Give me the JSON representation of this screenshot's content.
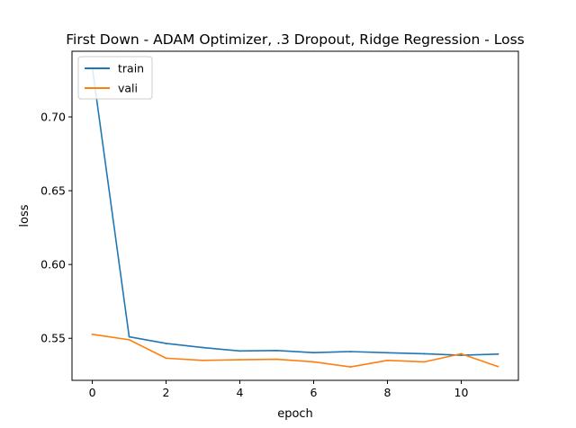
{
  "chart_data": {
    "type": "line",
    "title": "First Down - ADAM Optimizer, .3 Dropout, Ridge Regression - Loss",
    "xlabel": "epoch",
    "ylabel": "loss",
    "xlim": [
      -0.55,
      11.55
    ],
    "ylim": [
      0.5215,
      0.7445
    ],
    "xticks": [
      0,
      2,
      4,
      6,
      8,
      10
    ],
    "xtick_labels": [
      "0",
      "2",
      "4",
      "6",
      "8",
      "10"
    ],
    "yticks": [
      0.55,
      0.6,
      0.65,
      0.7
    ],
    "ytick_labels": [
      "0.55",
      "0.60",
      "0.65",
      "0.70"
    ],
    "grid": false,
    "legend_position": "upper-left",
    "x": [
      0,
      1,
      2,
      3,
      4,
      5,
      6,
      7,
      8,
      9,
      10,
      11
    ],
    "series": [
      {
        "name": "train",
        "color": "#1f77b4",
        "values": [
          0.7335,
          0.551,
          0.5465,
          0.5437,
          0.5414,
          0.5417,
          0.5403,
          0.541,
          0.5402,
          0.5395,
          0.5385,
          0.5393
        ]
      },
      {
        "name": "vali",
        "color": "#ff7f0e",
        "values": [
          0.5527,
          0.549,
          0.5365,
          0.535,
          0.5355,
          0.5358,
          0.534,
          0.5306,
          0.535,
          0.534,
          0.5395,
          0.5308
        ]
      }
    ]
  }
}
